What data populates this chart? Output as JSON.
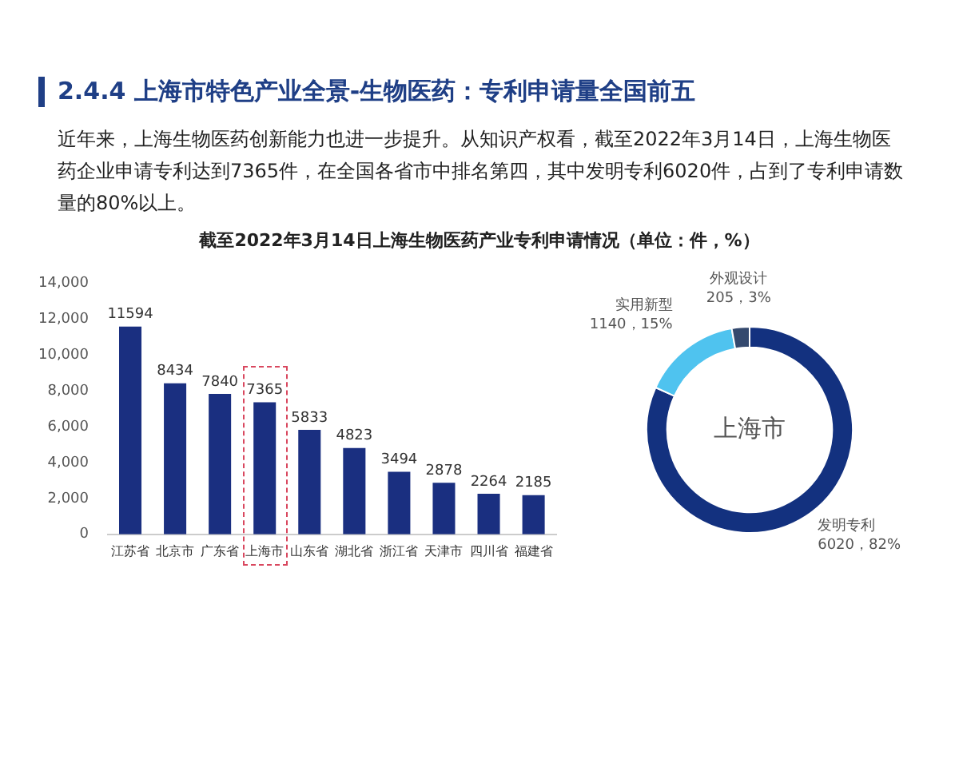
{
  "chart_data": [
    {
      "type": "bar",
      "title": "截至2022年3月14日上海生物医药产业专利申请情况（单位：件，%）",
      "annotations": [
        "2.4.4 上海市特色产业全景-生物医药：专利申请量全国前五",
        "近年来，上海生物医药创新能力也进一步提升。从知识产权看，截至2022年3月14日，上海生物医药企业申请专利达到7365件，在全国各省市中排名第四，其中发明专利6020件，占到了专利申请数量的80%以上。"
      ],
      "categories": [
        "江苏省",
        "北京市",
        "广东省",
        "上海市",
        "山东省",
        "湖北省",
        "浙江省",
        "天津市",
        "四川省",
        "福建省"
      ],
      "values": [
        11594,
        8434,
        7840,
        7365,
        5833,
        4823,
        3494,
        2878,
        2264,
        2185
      ],
      "color": "#1a2f80",
      "data_labels": true,
      "grid": false,
      "legend": false,
      "ylim": [
        0,
        14000
      ],
      "yticks": [
        0,
        {
          "value": 2000,
          "label": "2,000"
        },
        {
          "value": 4000,
          "label": "4,000"
        },
        {
          "value": 6000,
          "label": "6,000"
        },
        {
          "value": 8000,
          "label": "8,000"
        },
        {
          "value": 10000,
          "label": "10,000"
        },
        {
          "value": 12000,
          "label": "12,000"
        },
        {
          "value": 14000,
          "label": "14,000"
        }
      ]
    },
    {
      "type": "donut",
      "annotations": [
        "上海市"
      ],
      "categories": [
        "发明专利",
        "实用新型",
        "外观设计"
      ],
      "values": [
        6020,
        1140,
        205
      ],
      "value_labels": [
        "6020，82%",
        "1140，15%",
        "205，3%"
      ],
      "colors": [
        "#13317f",
        "#4fc3ef",
        "#34496e"
      ],
      "legend": false
    }
  ]
}
